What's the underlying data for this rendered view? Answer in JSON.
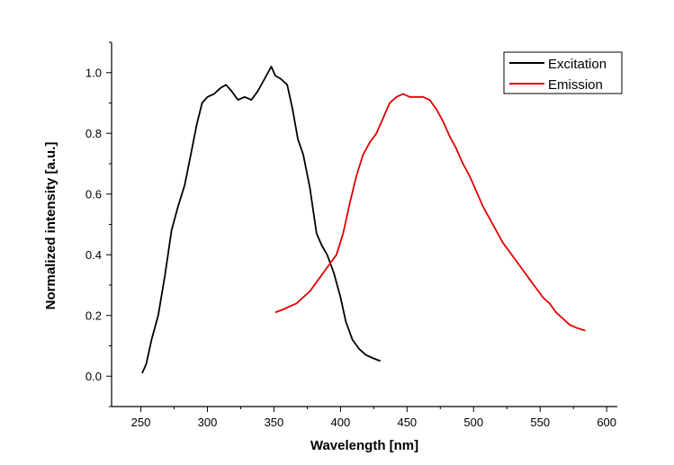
{
  "chart_data": {
    "type": "line",
    "xlabel": "Wavelength [nm]",
    "ylabel": "Normalized intensity [a.u.]",
    "xlim": [
      228,
      608
    ],
    "ylim": [
      -0.1,
      1.1
    ],
    "xticks": [
      250,
      300,
      350,
      400,
      450,
      500,
      550,
      600
    ],
    "yticks": [
      0.0,
      0.2,
      0.4,
      0.6,
      0.8,
      1.0
    ],
    "xtick_labels": [
      "250",
      "300",
      "350",
      "400",
      "450",
      "500",
      "550",
      "600"
    ],
    "ytick_labels": [
      "0.0",
      "0.2",
      "0.4",
      "0.6",
      "0.8",
      "1.0"
    ],
    "legend": {
      "position": "top-right"
    },
    "series": [
      {
        "name": "Excitation",
        "color": "#000000",
        "x": [
          251,
          254,
          258,
          263,
          268,
          273,
          278,
          283,
          288,
          292,
          296,
          300,
          305,
          310,
          314,
          318,
          323,
          328,
          333,
          338,
          343,
          348,
          351,
          355,
          360,
          364,
          368,
          372,
          377,
          382,
          386,
          390,
          395,
          400,
          404,
          409,
          414,
          419,
          424,
          430
        ],
        "y": [
          0.01,
          0.04,
          0.12,
          0.2,
          0.33,
          0.48,
          0.56,
          0.63,
          0.74,
          0.83,
          0.9,
          0.92,
          0.93,
          0.95,
          0.96,
          0.94,
          0.91,
          0.92,
          0.91,
          0.94,
          0.98,
          1.02,
          0.99,
          0.98,
          0.96,
          0.88,
          0.78,
          0.73,
          0.62,
          0.47,
          0.43,
          0.4,
          0.34,
          0.26,
          0.18,
          0.12,
          0.09,
          0.07,
          0.06,
          0.05
        ]
      },
      {
        "name": "Emission",
        "color": "#e00000",
        "x": [
          351,
          357,
          362,
          367,
          372,
          377,
          382,
          387,
          392,
          397,
          402,
          407,
          412,
          417,
          422,
          427,
          432,
          437,
          442,
          447,
          452,
          457,
          462,
          467,
          472,
          477,
          482,
          487,
          492,
          497,
          502,
          507,
          512,
          517,
          522,
          527,
          532,
          537,
          542,
          547,
          552,
          557,
          562,
          567,
          572,
          577,
          584
        ],
        "y": [
          0.21,
          0.22,
          0.23,
          0.24,
          0.26,
          0.28,
          0.31,
          0.34,
          0.37,
          0.4,
          0.47,
          0.57,
          0.66,
          0.73,
          0.77,
          0.8,
          0.85,
          0.9,
          0.92,
          0.93,
          0.92,
          0.92,
          0.92,
          0.91,
          0.88,
          0.84,
          0.79,
          0.75,
          0.7,
          0.66,
          0.61,
          0.56,
          0.52,
          0.48,
          0.44,
          0.41,
          0.38,
          0.35,
          0.32,
          0.29,
          0.26,
          0.24,
          0.21,
          0.19,
          0.17,
          0.16,
          0.15
        ]
      }
    ]
  }
}
